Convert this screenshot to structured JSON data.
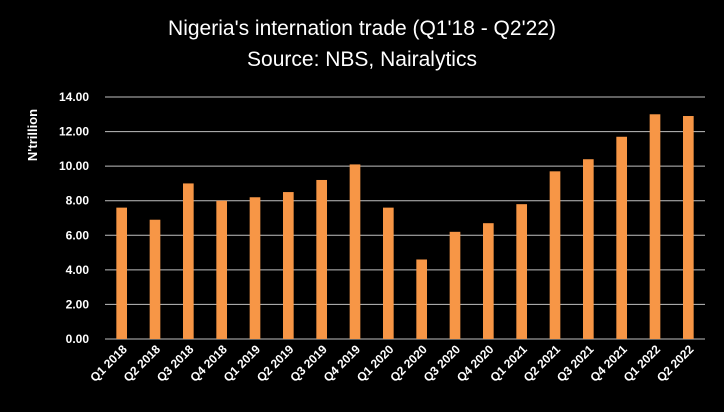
{
  "chart_data": {
    "type": "bar",
    "title": "Nigeria's internation trade (Q1'18 - Q2'22)",
    "subtitle": "Source: NBS, Nairalytics",
    "xlabel": "",
    "ylabel": "N'trillion",
    "ylim": [
      0,
      14
    ],
    "yticks": [
      "0.00",
      "2.00",
      "4.00",
      "6.00",
      "8.00",
      "10.00",
      "12.00",
      "14.00"
    ],
    "grid": true,
    "legend": "none",
    "categories": [
      "Q1 2018",
      "Q2 2018",
      "Q3 2018",
      "Q4 2018",
      "Q1 2019",
      "Q2 2019",
      "Q3 2019",
      "Q4 2019",
      "Q1 2020",
      "Q2 2020",
      "Q3 2020",
      "Q4 2020",
      "Q1 2021",
      "Q2 2021",
      "Q3 2021",
      "Q4 2021",
      "Q1 2022",
      "Q2 2022"
    ],
    "values": [
      7.6,
      6.9,
      9.0,
      8.0,
      8.2,
      8.5,
      9.2,
      10.1,
      7.6,
      4.6,
      6.2,
      6.7,
      7.8,
      9.7,
      10.4,
      11.7,
      13.0,
      12.9
    ],
    "colors": {
      "bar": "#F79646",
      "background": "#000000",
      "gridline": "#BFBFBF",
      "text": "#FFFFFF"
    }
  }
}
